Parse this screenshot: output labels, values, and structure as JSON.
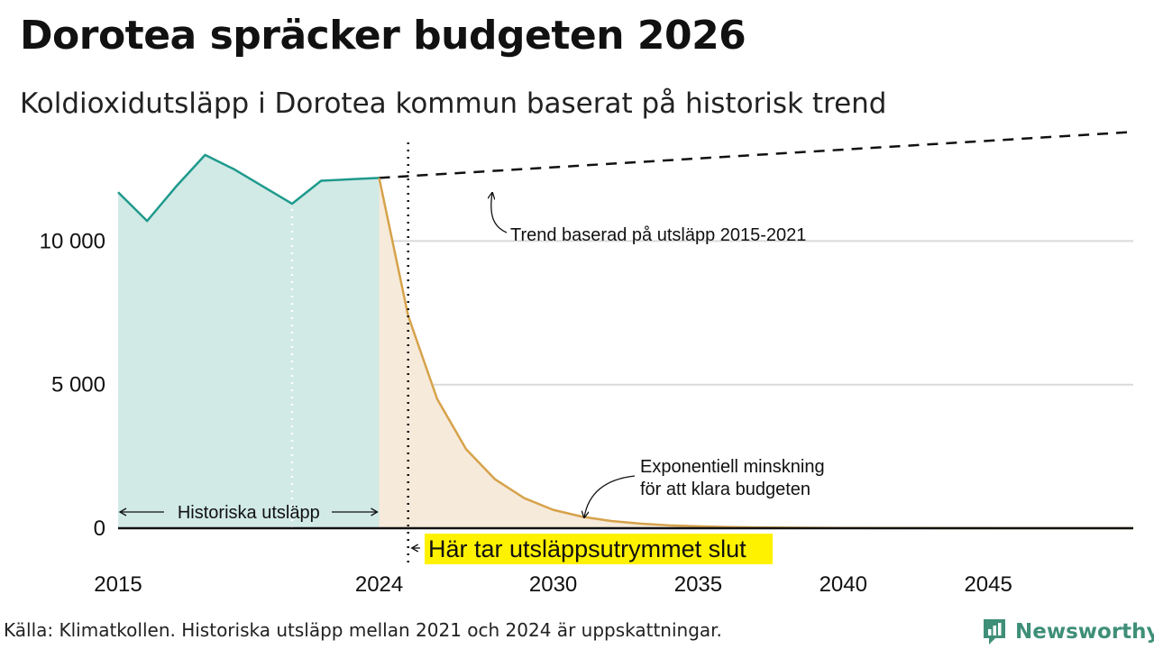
{
  "header": {
    "title": "Dorotea spräcker budgeten 2026",
    "subtitle": "Koldioxidutsläpp i Dorotea kommun baserat på historisk trend"
  },
  "footer": {
    "source": "Källa: Klimatkollen. Historiska utsläpp mellan 2021 och 2024 är uppskattningar.",
    "brand": "Newsworthy"
  },
  "colors": {
    "historical_line": "#1e9a8c",
    "historical_fill": "#d1eae6",
    "projection_line": "#d6a24a",
    "projection_fill": "#f6eada",
    "highlight": "#fff200",
    "brand": "#3f8f78"
  },
  "chart_data": {
    "type": "area",
    "title": "Dorotea spräcker budgeten 2026",
    "subtitle": "Koldioxidutsläpp i Dorotea kommun baserat på historisk trend",
    "xlim": [
      2015,
      2050
    ],
    "ylim": [
      0,
      14000
    ],
    "x_ticks": [
      2015,
      2024,
      2030,
      2035,
      2040,
      2045
    ],
    "y_ticks": [
      0,
      5000,
      10000
    ],
    "y_tick_labels": [
      "0",
      "5 000",
      "10 000"
    ],
    "grid": true,
    "series": [
      {
        "name": "Historiska utsläpp",
        "x": [
          2015,
          2016,
          2017,
          2018,
          2019,
          2020,
          2021,
          2022,
          2024
        ],
        "values": [
          11700,
          10700,
          11900,
          13000,
          12500,
          11900,
          11300,
          12100,
          12200
        ]
      },
      {
        "name": "Trend baserad på utsläpp 2015-2021",
        "style": "dashed",
        "x": [
          2024,
          2050
        ],
        "values": [
          12200,
          13800
        ]
      },
      {
        "name": "Exponentiell minskning för att klara budgeten",
        "x": [
          2024,
          2025,
          2026,
          2027,
          2028,
          2029,
          2030,
          2031,
          2032,
          2033,
          2034,
          2035,
          2036,
          2037,
          2038,
          2040,
          2043,
          2046,
          2050
        ],
        "values": [
          12200,
          7400,
          4500,
          2750,
          1700,
          1050,
          640,
          400,
          250,
          160,
          100,
          65,
          42,
          28,
          18,
          8,
          3,
          1,
          0
        ]
      }
    ],
    "budget_end_year": 2025,
    "annotations": {
      "historical": "Historiska utsläpp",
      "trend": "Trend baserad på utsläpp 2015-2021",
      "exp_line1": "Exponentiell minskning",
      "exp_line2": "för att klara budgeten",
      "budget_end": "Här tar utsläppsutrymmet slut"
    }
  }
}
